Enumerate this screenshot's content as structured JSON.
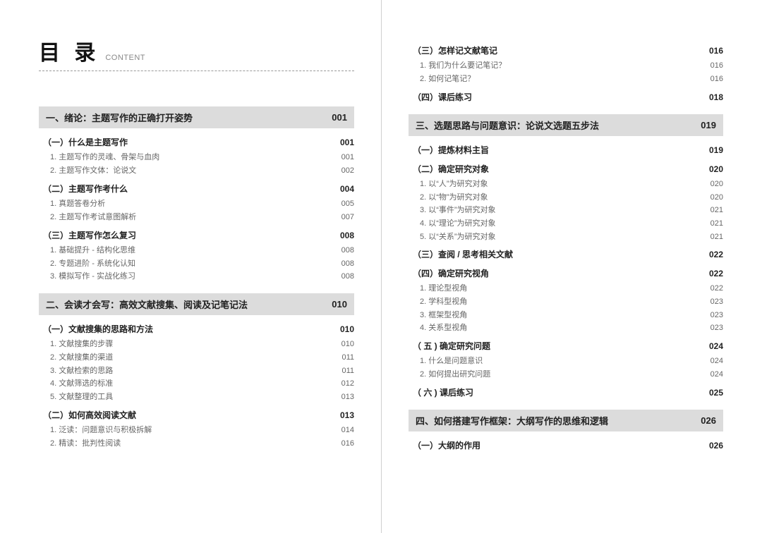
{
  "title": {
    "main": "目 录",
    "sub": "CONTENT"
  },
  "colors": {
    "chapter_bg": "#dcdcdc",
    "text": "#222222",
    "muted": "#666666",
    "rule": "#999999"
  },
  "left": [
    {
      "type": "chapter",
      "title": "一、绪论：主题写作的正确打开姿势",
      "page": "001"
    },
    {
      "type": "section",
      "title": "（一）什么是主题写作",
      "page": "001"
    },
    {
      "type": "item",
      "title": "1. 主题写作的灵魂、骨架与血肉",
      "page": "001"
    },
    {
      "type": "item",
      "title": "2. 主题写作文体：论说文",
      "page": "002"
    },
    {
      "type": "section",
      "title": "（二）主题写作考什么",
      "page": "004"
    },
    {
      "type": "item",
      "title": "1. 真题答卷分析",
      "page": "005"
    },
    {
      "type": "item",
      "title": "2. 主题写作考试意图解析",
      "page": "007"
    },
    {
      "type": "section",
      "title": "（三）主题写作怎么复习",
      "page": "008"
    },
    {
      "type": "item",
      "title": "1. 基础提升 - 结构化思维",
      "page": "008"
    },
    {
      "type": "item",
      "title": "2. 专题进阶 - 系统化认知",
      "page": "008"
    },
    {
      "type": "item",
      "title": "3. 模拟写作 - 实战化练习",
      "page": "008"
    },
    {
      "type": "chapter",
      "title": "二、会读才会写：高效文献搜集、阅读及记笔记法",
      "page": "010"
    },
    {
      "type": "section",
      "title": "（一）文献搜集的思路和方法",
      "page": "010"
    },
    {
      "type": "item",
      "title": "1. 文献搜集的步骤",
      "page": "010"
    },
    {
      "type": "item",
      "title": "2. 文献搜集的渠道",
      "page": "011"
    },
    {
      "type": "item",
      "title": "3. 文献检索的思路",
      "page": "011"
    },
    {
      "type": "item",
      "title": "4. 文献筛选的标准",
      "page": "012"
    },
    {
      "type": "item",
      "title": "5. 文献整理的工具",
      "page": "013"
    },
    {
      "type": "section",
      "title": "（二）如何高效阅读文献",
      "page": "013"
    },
    {
      "type": "item",
      "title": "1. 泛读：问题意识与积极拆解",
      "page": "014"
    },
    {
      "type": "item",
      "title": "2. 精读：批判性阅读",
      "page": "016"
    }
  ],
  "right": [
    {
      "type": "section",
      "title": "（三）怎样记文献笔记",
      "page": "016"
    },
    {
      "type": "item",
      "title": "1. 我们为什么要记笔记？",
      "page": "016"
    },
    {
      "type": "item",
      "title": "2. 如何记笔记？",
      "page": "016"
    },
    {
      "type": "section",
      "title": "（四）课后练习",
      "page": "018"
    },
    {
      "type": "chapter",
      "title": "三、选题思路与问题意识：论说文选题五步法",
      "page": "019"
    },
    {
      "type": "section",
      "title": "（一）提炼材料主旨",
      "page": "019"
    },
    {
      "type": "section",
      "title": "（二）确定研究对象",
      "page": "020"
    },
    {
      "type": "item",
      "title": "1. 以“人”为研究对象",
      "page": "020"
    },
    {
      "type": "item",
      "title": "2. 以“物”为研究对象",
      "page": "020"
    },
    {
      "type": "item",
      "title": "3. 以“事件”为研究对象",
      "page": "021"
    },
    {
      "type": "item",
      "title": "4. 以“理论”为研究对象",
      "page": "021"
    },
    {
      "type": "item",
      "title": "5. 以“关系”为研究对象",
      "page": "021"
    },
    {
      "type": "section",
      "title": "（三）查阅 / 思考相关文献",
      "page": "022"
    },
    {
      "type": "section",
      "title": "（四）确定研究视角",
      "page": "022"
    },
    {
      "type": "item",
      "title": "1. 理论型视角",
      "page": "022"
    },
    {
      "type": "item",
      "title": "2. 学科型视角",
      "page": "023"
    },
    {
      "type": "item",
      "title": "3. 框架型视角",
      "page": "023"
    },
    {
      "type": "item",
      "title": "4. 关系型视角",
      "page": "023"
    },
    {
      "type": "section",
      "title": "（ 五 ) 确定研究问题",
      "page": "024"
    },
    {
      "type": "item",
      "title": "1. 什么是问题意识",
      "page": "024"
    },
    {
      "type": "item",
      "title": "2. 如何提出研究问题",
      "page": "024"
    },
    {
      "type": "section",
      "title": "（ 六 ) 课后练习",
      "page": "025"
    },
    {
      "type": "chapter",
      "title": "四、如何搭建写作框架：大纲写作的思维和逻辑",
      "page": "026"
    },
    {
      "type": "section",
      "title": "（一）大纲的作用",
      "page": "026"
    }
  ]
}
